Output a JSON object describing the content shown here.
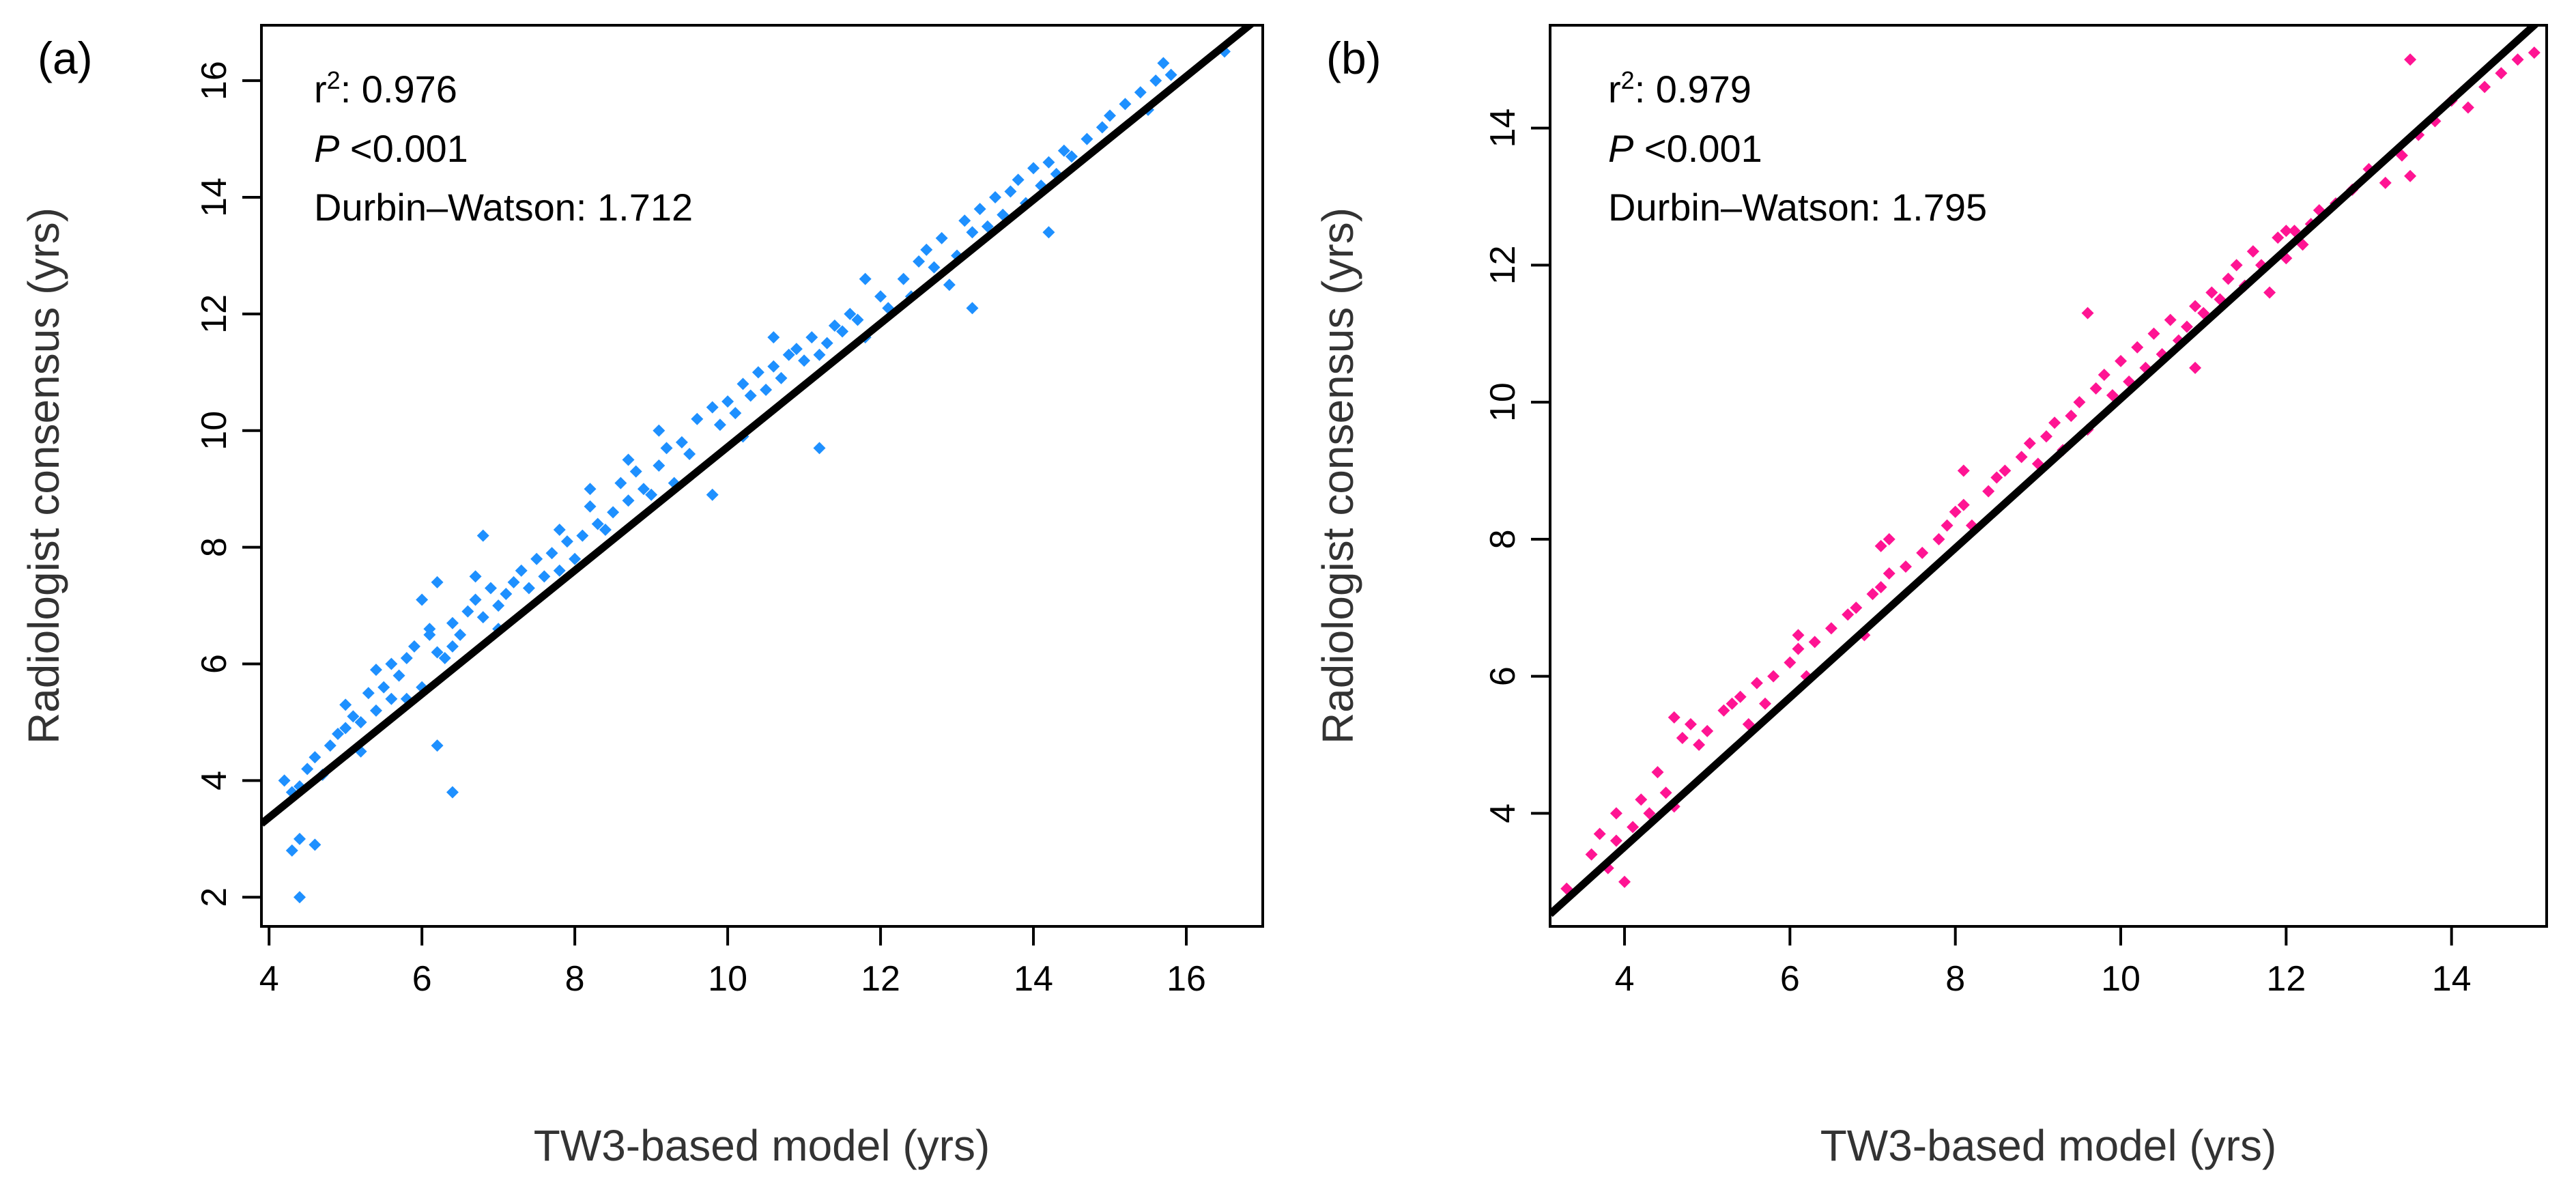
{
  "chart_data": [
    {
      "type": "scatter",
      "panel_label": "(a)",
      "xlabel": "TW3-based model (yrs)",
      "ylabel": "Radiologist consensus (yrs)",
      "xlim": [
        3.9,
        17.0
      ],
      "ylim": [
        1.5,
        16.95
      ],
      "xticks": [
        4,
        6,
        8,
        10,
        12,
        14,
        16
      ],
      "yticks": [
        2,
        4,
        6,
        8,
        10,
        12,
        14,
        16
      ],
      "point_color": "#1E90FF",
      "fit_line": {
        "slope": 1.059,
        "intercept": -0.87
      },
      "stats": {
        "r2_label": "r",
        "r2_sup": "2",
        "r2_value": ": 0.976",
        "p_label": "P",
        "p_value": " <0.001",
        "dw_text": "Durbin–Watson: 1.712"
      },
      "x": [
        4.3,
        4.4,
        4.2,
        4.5,
        4.4,
        4.6,
        4.8,
        4.7,
        4.9,
        5.0,
        5.1,
        5.0,
        5.2,
        5.3,
        5.4,
        5.5,
        5.4,
        5.6,
        5.7,
        5.8,
        5.6,
        5.9,
        6.0,
        6.1,
        6.2,
        6.1,
        6.3,
        6.4,
        6.2,
        6.5,
        6.6,
        6.4,
        6.7,
        6.8,
        6.9,
        6.7,
        7.0,
        7.1,
        7.2,
        7.0,
        7.3,
        7.4,
        7.5,
        7.6,
        7.7,
        7.8,
        7.9,
        7.8,
        8.0,
        8.1,
        8.2,
        8.3,
        8.2,
        8.4,
        8.5,
        8.6,
        8.7,
        8.8,
        8.9,
        8.7,
        9.0,
        9.1,
        9.2,
        9.3,
        9.4,
        9.5,
        9.6,
        9.8,
        9.9,
        10.0,
        10.1,
        10.2,
        10.3,
        10.2,
        10.4,
        10.5,
        10.6,
        10.7,
        10.8,
        10.9,
        11.0,
        11.1,
        11.2,
        11.3,
        11.4,
        11.5,
        11.6,
        11.7,
        11.8,
        12.0,
        12.1,
        12.3,
        12.5,
        12.6,
        12.7,
        12.8,
        12.9,
        13.0,
        13.1,
        13.2,
        13.3,
        13.4,
        13.5,
        13.6,
        13.7,
        13.8,
        13.9,
        14.0,
        14.1,
        14.2,
        14.3,
        14.4,
        14.5,
        14.7,
        14.9,
        15.0,
        15.2,
        15.4,
        15.5,
        15.6,
        15.7,
        15.8,
        16.5,
        11.2,
        9.8,
        6.8,
        6.4,
        6.2,
        4.4,
        4.6,
        4.3,
        6.0,
        5.2,
        5.8,
        9.1,
        10.6,
        11.8,
        12.4,
        13.2,
        14.2
      ],
      "y": [
        3.8,
        3.0,
        4.0,
        4.2,
        3.9,
        4.4,
        4.6,
        4.1,
        4.8,
        4.9,
        5.1,
        5.3,
        5.0,
        5.5,
        5.2,
        5.6,
        5.9,
        5.4,
        5.8,
        6.1,
        6.0,
        6.3,
        5.6,
        6.5,
        6.2,
        6.6,
        6.1,
        6.7,
        7.4,
        6.5,
        6.9,
        6.3,
        7.1,
        6.8,
        7.3,
        7.5,
        7.0,
        7.2,
        7.4,
        6.6,
        7.6,
        7.3,
        7.8,
        7.5,
        7.9,
        7.6,
        8.1,
        8.3,
        7.8,
        8.2,
        8.7,
        8.4,
        9.0,
        8.3,
        8.6,
        9.1,
        8.8,
        9.3,
        9.0,
        9.5,
        8.9,
        9.4,
        9.7,
        9.1,
        9.8,
        9.6,
        10.2,
        10.4,
        10.1,
        10.5,
        10.3,
        10.8,
        10.6,
        9.9,
        11.0,
        10.7,
        11.1,
        10.9,
        11.3,
        11.4,
        11.2,
        11.6,
        11.3,
        11.5,
        11.8,
        11.7,
        12.0,
        11.9,
        11.6,
        12.3,
        12.1,
        12.6,
        12.9,
        13.1,
        12.8,
        13.3,
        12.5,
        13.0,
        13.6,
        13.4,
        13.8,
        13.5,
        14.0,
        13.7,
        14.1,
        14.3,
        13.9,
        14.5,
        14.2,
        14.6,
        14.4,
        14.8,
        14.7,
        15.0,
        15.2,
        15.4,
        15.6,
        15.8,
        15.5,
        16.0,
        16.3,
        16.1,
        16.5,
        9.7,
        8.9,
        8.2,
        3.8,
        4.6,
        2.0,
        2.9,
        2.8,
        7.1,
        4.5,
        5.4,
        10.0,
        11.6,
        12.6,
        12.3,
        12.1,
        13.4
      ]
    },
    {
      "type": "scatter",
      "panel_label": "(b)",
      "xlabel": "TW3-based model (yrs)",
      "ylabel": "Radiologist consensus (yrs)",
      "xlim": [
        3.1,
        15.15
      ],
      "ylim": [
        2.35,
        15.5
      ],
      "xticks": [
        4,
        6,
        8,
        10,
        12,
        14
      ],
      "yticks": [
        4,
        6,
        8,
        10,
        12,
        14
      ],
      "point_color": "#FF1493",
      "fit_line": {
        "slope": 1.09,
        "intercept": -0.85
      },
      "stats": {
        "r2_label": "r",
        "r2_sup": "2",
        "r2_value": ": 0.979",
        "p_label": "P",
        "p_value": " <0.001",
        "dw_text": "Durbin–Watson: 1.795"
      },
      "x": [
        3.3,
        3.6,
        3.7,
        3.8,
        3.9,
        4.0,
        3.9,
        4.1,
        4.2,
        4.3,
        4.4,
        4.5,
        4.6,
        4.7,
        4.8,
        4.9,
        5.0,
        5.2,
        5.4,
        5.5,
        5.6,
        5.7,
        5.8,
        6.0,
        6.1,
        6.2,
        6.3,
        6.5,
        6.7,
        6.8,
        6.9,
        7.0,
        7.1,
        7.2,
        7.4,
        7.6,
        7.8,
        7.9,
        8.0,
        8.1,
        8.2,
        8.4,
        8.5,
        8.6,
        8.8,
        8.9,
        9.0,
        9.1,
        9.2,
        9.3,
        9.4,
        9.5,
        9.6,
        9.7,
        9.8,
        9.9,
        10.0,
        10.1,
        10.2,
        10.3,
        10.4,
        10.5,
        10.6,
        10.7,
        10.8,
        10.9,
        11.0,
        11.1,
        11.2,
        11.3,
        11.4,
        11.5,
        11.6,
        11.7,
        11.8,
        11.9,
        12.0,
        12.1,
        12.2,
        12.3,
        12.4,
        12.6,
        12.8,
        13.0,
        13.2,
        13.4,
        13.5,
        13.6,
        13.8,
        14.0,
        14.2,
        14.4,
        14.6,
        14.8,
        15.0,
        7.1,
        7.2,
        4.6,
        5.3,
        9.6,
        10.9,
        12.0,
        13.5,
        11.6,
        8.1,
        6.1
      ],
      "y": [
        2.9,
        3.4,
        3.7,
        3.2,
        3.6,
        3.0,
        4.0,
        3.8,
        4.2,
        4.0,
        4.6,
        4.3,
        5.4,
        5.1,
        5.3,
        5.0,
        5.2,
        5.5,
        5.7,
        5.3,
        5.9,
        5.6,
        6.0,
        6.2,
        6.4,
        6.0,
        6.5,
        6.7,
        6.9,
        7.0,
        6.6,
        7.2,
        7.3,
        7.5,
        7.6,
        7.8,
        8.0,
        8.2,
        8.4,
        8.5,
        8.2,
        8.7,
        8.9,
        9.0,
        9.2,
        9.4,
        9.1,
        9.5,
        9.7,
        9.3,
        9.8,
        10.0,
        9.6,
        10.2,
        10.4,
        10.1,
        10.6,
        10.3,
        10.8,
        10.5,
        11.0,
        10.7,
        11.2,
        10.9,
        11.1,
        11.4,
        11.3,
        11.6,
        11.5,
        11.8,
        12.0,
        11.7,
        12.2,
        12.0,
        11.6,
        12.4,
        12.1,
        12.5,
        12.3,
        12.6,
        12.8,
        12.9,
        13.1,
        13.4,
        13.2,
        13.6,
        13.3,
        13.9,
        14.1,
        14.4,
        14.3,
        14.6,
        14.8,
        15.0,
        15.1,
        7.9,
        8.0,
        4.1,
        5.6,
        11.3,
        10.5,
        12.5,
        15.0,
        12.2,
        9.0,
        6.6
      ]
    }
  ]
}
